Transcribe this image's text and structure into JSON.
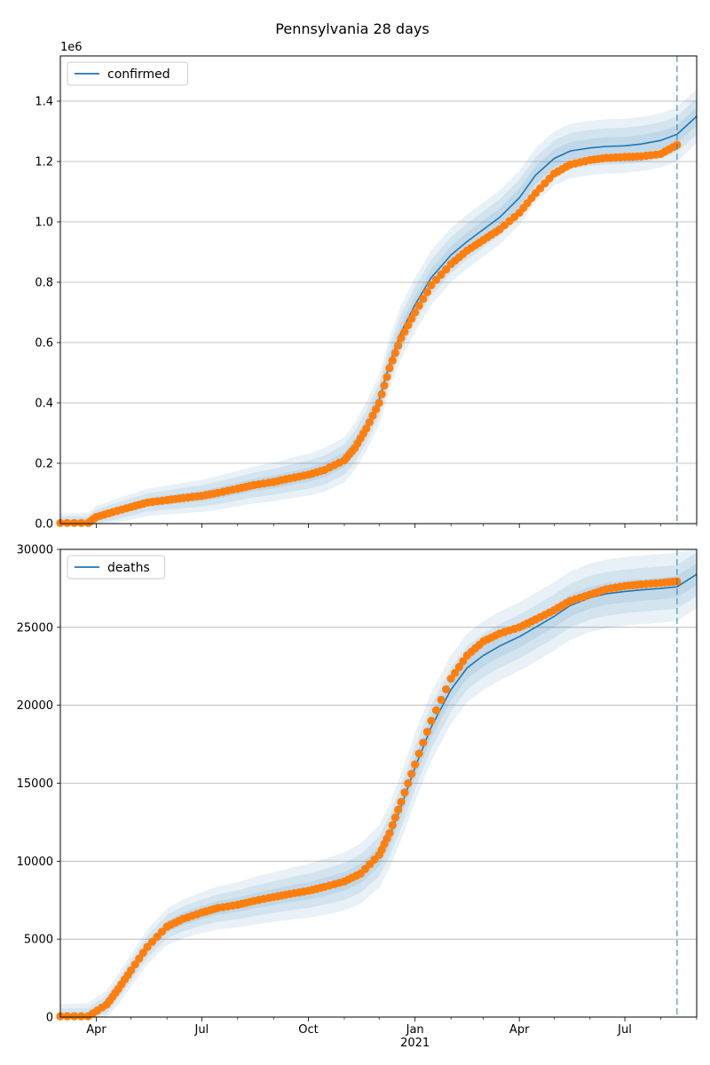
{
  "title": "Pennsylvania 28 days",
  "colors": {
    "model": "#1f77b4",
    "observed": "#ff7f0e",
    "band": "#1f77b4",
    "grid": "#b0b0b0",
    "cutoff": "#1f77b4"
  },
  "x_axis": {
    "range": [
      "2020-03-01",
      "2021-09-01"
    ],
    "tick_labels": [
      "Apr",
      "Jul",
      "Oct",
      "Jan",
      "Apr",
      "Jul"
    ],
    "tick_dates": [
      "2020-04-01",
      "2020-07-01",
      "2020-10-01",
      "2021-01-01",
      "2021-04-01",
      "2021-07-01"
    ],
    "year_label": "2021",
    "minor_tick_dates": [
      "2020-05-01",
      "2020-06-01",
      "2020-08-01",
      "2020-09-01",
      "2020-11-01",
      "2020-12-01",
      "2021-02-01",
      "2021-03-01",
      "2021-05-01",
      "2021-06-01",
      "2021-08-01",
      "2021-09-01"
    ]
  },
  "chart_data": [
    {
      "type": "line",
      "legend": "confirmed",
      "legend_position": "top-left",
      "grid": "horizontal",
      "ylim": [
        0,
        1550000
      ],
      "y_offset_label": "1e6",
      "y_ticks": [
        0,
        200000,
        400000,
        600000,
        800000,
        1000000,
        1200000,
        1400000
      ],
      "y_tick_labels": [
        "0.0",
        "0.2",
        "0.4",
        "0.6",
        "0.8",
        "1.0",
        "1.2",
        "1.4"
      ],
      "cutoff_date": "2021-08-15",
      "observed": {
        "x": [
          "2020-03-01",
          "2020-03-25",
          "2020-04-01",
          "2020-04-15",
          "2020-05-01",
          "2020-05-15",
          "2020-06-01",
          "2020-06-15",
          "2020-07-01",
          "2020-07-15",
          "2020-08-01",
          "2020-08-15",
          "2020-09-01",
          "2020-09-15",
          "2020-10-01",
          "2020-10-15",
          "2020-11-01",
          "2020-11-10",
          "2020-11-20",
          "2020-12-01",
          "2020-12-10",
          "2020-12-20",
          "2021-01-01",
          "2021-01-15",
          "2021-02-01",
          "2021-02-15",
          "2021-03-01",
          "2021-03-15",
          "2021-04-01",
          "2021-04-15",
          "2021-05-01",
          "2021-05-15",
          "2021-06-01",
          "2021-06-15",
          "2021-07-01",
          "2021-07-15",
          "2021-08-01",
          "2021-08-15"
        ],
        "y": [
          2000,
          2000,
          22000,
          38000,
          55000,
          70000,
          78000,
          85000,
          92000,
          102000,
          116000,
          128000,
          138000,
          150000,
          162000,
          178000,
          210000,
          250000,
          315000,
          400000,
          515000,
          615000,
          700000,
          790000,
          860000,
          905000,
          940000,
          975000,
          1030000,
          1095000,
          1160000,
          1190000,
          1205000,
          1212000,
          1215000,
          1217000,
          1225000,
          1255000
        ]
      },
      "model": {
        "x": [
          "2020-03-01",
          "2020-03-25",
          "2020-04-01",
          "2020-04-15",
          "2020-05-01",
          "2020-05-15",
          "2020-06-01",
          "2020-06-15",
          "2020-07-01",
          "2020-07-15",
          "2020-08-01",
          "2020-08-15",
          "2020-09-01",
          "2020-09-15",
          "2020-10-01",
          "2020-10-15",
          "2020-11-01",
          "2020-11-10",
          "2020-11-20",
          "2020-12-01",
          "2020-12-10",
          "2020-12-20",
          "2021-01-01",
          "2021-01-15",
          "2021-02-01",
          "2021-02-15",
          "2021-03-01",
          "2021-03-15",
          "2021-04-01",
          "2021-04-15",
          "2021-05-01",
          "2021-05-15",
          "2021-06-01",
          "2021-06-15",
          "2021-07-01",
          "2021-07-15",
          "2021-08-01",
          "2021-08-15",
          "2021-09-01"
        ],
        "y": [
          2000,
          2000,
          22000,
          38000,
          55000,
          70000,
          78000,
          85000,
          92000,
          102000,
          116000,
          128000,
          138000,
          150000,
          162000,
          178000,
          212000,
          255000,
          322000,
          410000,
          530000,
          635000,
          725000,
          815000,
          890000,
          935000,
          975000,
          1015000,
          1080000,
          1155000,
          1210000,
          1235000,
          1245000,
          1250000,
          1252000,
          1258000,
          1270000,
          1290000,
          1350000
        ],
        "band_half_widths": [
          30000,
          60000,
          90000
        ]
      }
    },
    {
      "type": "line",
      "legend": "deaths",
      "legend_position": "top-left",
      "grid": "horizontal",
      "ylim": [
        0,
        30000
      ],
      "y_ticks": [
        0,
        5000,
        10000,
        15000,
        20000,
        25000,
        30000
      ],
      "y_tick_labels": [
        "0",
        "5000",
        "10000",
        "15000",
        "20000",
        "25000",
        "30000"
      ],
      "cutoff_date": "2021-08-15",
      "observed": {
        "x": [
          "2020-03-01",
          "2020-03-25",
          "2020-04-10",
          "2020-04-20",
          "2020-05-01",
          "2020-05-15",
          "2020-06-01",
          "2020-06-15",
          "2020-07-01",
          "2020-07-15",
          "2020-08-01",
          "2020-08-15",
          "2020-09-01",
          "2020-09-15",
          "2020-10-01",
          "2020-10-15",
          "2020-11-01",
          "2020-11-15",
          "2020-12-01",
          "2020-12-10",
          "2020-12-20",
          "2021-01-01",
          "2021-01-15",
          "2021-02-01",
          "2021-02-15",
          "2021-03-01",
          "2021-03-15",
          "2021-04-01",
          "2021-04-15",
          "2021-05-01",
          "2021-05-15",
          "2021-06-01",
          "2021-06-15",
          "2021-07-01",
          "2021-07-15",
          "2021-08-01",
          "2021-08-15"
        ],
        "y": [
          50,
          50,
          800,
          1800,
          3000,
          4500,
          5800,
          6300,
          6700,
          7000,
          7200,
          7450,
          7700,
          7900,
          8100,
          8350,
          8700,
          9200,
          10400,
          11800,
          13800,
          16200,
          19000,
          21700,
          23200,
          24100,
          24600,
          25000,
          25500,
          26100,
          26700,
          27100,
          27450,
          27650,
          27750,
          27850,
          27950
        ]
      },
      "model": {
        "x": [
          "2020-03-01",
          "2020-03-25",
          "2020-04-10",
          "2020-04-20",
          "2020-05-01",
          "2020-05-15",
          "2020-06-01",
          "2020-06-15",
          "2020-07-01",
          "2020-07-15",
          "2020-08-01",
          "2020-08-15",
          "2020-09-01",
          "2020-09-15",
          "2020-10-01",
          "2020-10-15",
          "2020-11-01",
          "2020-11-15",
          "2020-12-01",
          "2020-12-10",
          "2020-12-20",
          "2021-01-01",
          "2021-01-15",
          "2021-02-01",
          "2021-02-15",
          "2021-03-01",
          "2021-03-15",
          "2021-04-01",
          "2021-04-15",
          "2021-05-01",
          "2021-05-15",
          "2021-06-01",
          "2021-06-15",
          "2021-07-01",
          "2021-07-15",
          "2021-08-01",
          "2021-08-15",
          "2021-09-01"
        ],
        "y": [
          50,
          50,
          800,
          1800,
          3000,
          4500,
          5800,
          6300,
          6700,
          7000,
          7200,
          7450,
          7700,
          7900,
          8100,
          8350,
          8700,
          9200,
          10300,
          11600,
          13500,
          16000,
          18600,
          21000,
          22400,
          23200,
          23800,
          24400,
          25000,
          25700,
          26400,
          26900,
          27150,
          27300,
          27400,
          27500,
          27600,
          28400
        ],
        "band_half_widths": [
          700,
          1400,
          2200
        ]
      }
    }
  ]
}
